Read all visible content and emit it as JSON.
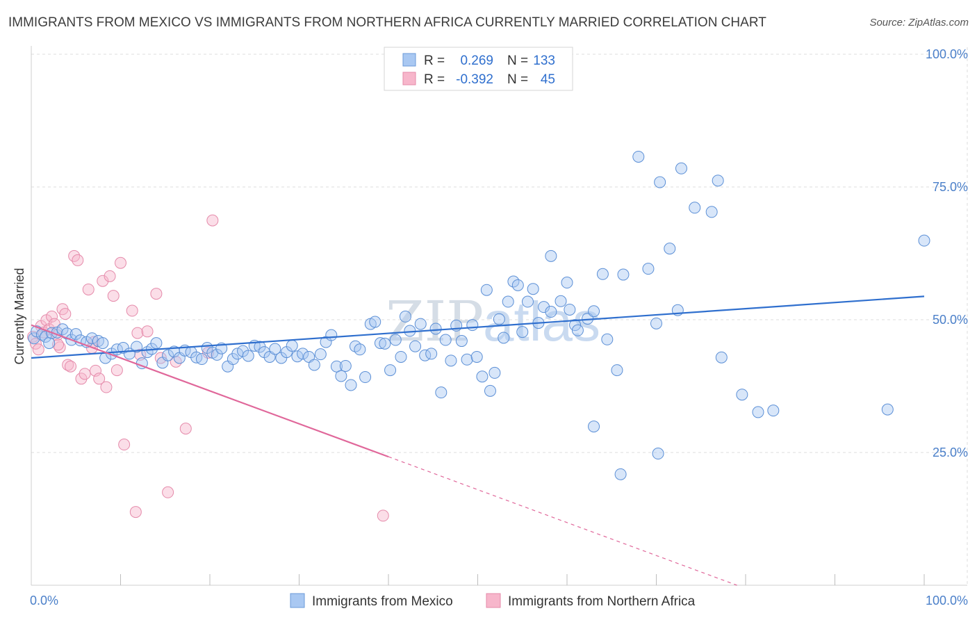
{
  "title": "IMMIGRANTS FROM MEXICO VS IMMIGRANTS FROM NORTHERN AFRICA CURRENTLY MARRIED CORRELATION CHART",
  "source": "Source: ZipAtlas.com",
  "watermark": {
    "part1": "ZIP",
    "part2": "atlas"
  },
  "colors": {
    "blue": "#2f6fce",
    "blue_fill": "#a9c8f2",
    "pink": "#e0679a",
    "pink_fill": "#f7b6cb",
    "tick_text": "#4a7fc9"
  },
  "legend_top": {
    "rows": [
      {
        "r_label": "R =",
        "r_value": "0.269",
        "n_label": "N =",
        "n_value": "133"
      },
      {
        "r_label": "R =",
        "r_value": "-0.392",
        "n_label": "N =",
        "n_value": "45"
      }
    ]
  },
  "chart_data": {
    "type": "scatter",
    "title": "IMMIGRANTS FROM MEXICO VS IMMIGRANTS FROM NORTHERN AFRICA CURRENTLY MARRIED CORRELATION CHART",
    "xlabel": "",
    "ylabel": "Currently Married",
    "xlim": [
      0,
      100
    ],
    "ylim": [
      0,
      105
    ],
    "x_tick_labels": [
      "0.0%",
      "100.0%"
    ],
    "y_tick_labels": [
      "25.0%",
      "50.0%",
      "75.0%",
      "100.0%"
    ],
    "y_ticks": [
      25,
      50,
      75,
      100
    ],
    "grid": true,
    "legend_position": "bottom",
    "series": [
      {
        "name": "Immigrants from Mexico",
        "trend": {
          "x": [
            0,
            100
          ],
          "y": [
            42.8,
            54.4
          ],
          "solid_until": 100
        },
        "points": [
          [
            0.3,
            46.5
          ],
          [
            0.6,
            47.8
          ],
          [
            1.2,
            47.2
          ],
          [
            1.6,
            46.8
          ],
          [
            2.0,
            45.6
          ],
          [
            2.3,
            47.5
          ],
          [
            2.9,
            47.6
          ],
          [
            3.5,
            48.2
          ],
          [
            4.0,
            47.4
          ],
          [
            4.5,
            46.2
          ],
          [
            5.0,
            47.3
          ],
          [
            5.5,
            46.1
          ],
          [
            6.2,
            45.8
          ],
          [
            6.8,
            46.5
          ],
          [
            7.5,
            46.0
          ],
          [
            8.0,
            45.6
          ],
          [
            8.3,
            42.8
          ],
          [
            9.0,
            43.6
          ],
          [
            9.6,
            44.4
          ],
          [
            10.3,
            44.7
          ],
          [
            11.0,
            43.6
          ],
          [
            11.8,
            44.9
          ],
          [
            12.4,
            41.8
          ],
          [
            13.0,
            43.9
          ],
          [
            13.5,
            44.5
          ],
          [
            14.0,
            45.6
          ],
          [
            14.7,
            41.9
          ],
          [
            15.3,
            43.3
          ],
          [
            16.0,
            44.0
          ],
          [
            16.6,
            42.8
          ],
          [
            17.2,
            44.2
          ],
          [
            17.9,
            43.9
          ],
          [
            18.5,
            42.9
          ],
          [
            19.1,
            42.6
          ],
          [
            19.7,
            44.7
          ],
          [
            20.3,
            43.8
          ],
          [
            20.8,
            43.4
          ],
          [
            21.3,
            44.6
          ],
          [
            22.0,
            41.2
          ],
          [
            22.6,
            42.6
          ],
          [
            23.1,
            43.6
          ],
          [
            23.7,
            44.1
          ],
          [
            24.3,
            43.2
          ],
          [
            25.0,
            45.1
          ],
          [
            25.6,
            44.9
          ],
          [
            26.1,
            43.9
          ],
          [
            26.7,
            43.0
          ],
          [
            27.3,
            44.5
          ],
          [
            28.0,
            42.8
          ],
          [
            28.6,
            43.9
          ],
          [
            29.2,
            45.1
          ],
          [
            29.8,
            43.1
          ],
          [
            30.4,
            43.6
          ],
          [
            31.1,
            43.0
          ],
          [
            31.7,
            41.5
          ],
          [
            32.4,
            43.5
          ],
          [
            33.0,
            45.8
          ],
          [
            33.6,
            47.1
          ],
          [
            34.2,
            41.2
          ],
          [
            34.7,
            39.4
          ],
          [
            35.2,
            41.3
          ],
          [
            35.8,
            37.7
          ],
          [
            36.3,
            45.0
          ],
          [
            36.8,
            44.4
          ],
          [
            37.4,
            39.2
          ],
          [
            38.0,
            49.2
          ],
          [
            38.5,
            49.6
          ],
          [
            39.1,
            45.6
          ],
          [
            39.6,
            45.5
          ],
          [
            40.2,
            40.5
          ],
          [
            40.8,
            46.2
          ],
          [
            41.4,
            43.0
          ],
          [
            41.9,
            50.6
          ],
          [
            42.4,
            47.9
          ],
          [
            43.0,
            45.0
          ],
          [
            43.6,
            49.2
          ],
          [
            44.1,
            43.3
          ],
          [
            44.8,
            43.6
          ],
          [
            45.3,
            48.3
          ],
          [
            45.9,
            36.3
          ],
          [
            46.4,
            46.2
          ],
          [
            47.0,
            42.3
          ],
          [
            47.6,
            48.9
          ],
          [
            48.2,
            46.0
          ],
          [
            48.8,
            42.5
          ],
          [
            49.4,
            49.0
          ],
          [
            49.9,
            43.0
          ],
          [
            50.5,
            39.3
          ],
          [
            51.0,
            55.6
          ],
          [
            51.4,
            36.6
          ],
          [
            51.9,
            40.0
          ],
          [
            52.4,
            50.1
          ],
          [
            52.9,
            46.6
          ],
          [
            53.4,
            53.4
          ],
          [
            54.0,
            57.2
          ],
          [
            54.5,
            56.5
          ],
          [
            55.0,
            47.7
          ],
          [
            55.6,
            53.4
          ],
          [
            56.2,
            55.8
          ],
          [
            56.8,
            49.4
          ],
          [
            57.4,
            52.4
          ],
          [
            58.2,
            51.5
          ],
          [
            59.3,
            53.5
          ],
          [
            60.3,
            51.9
          ],
          [
            60.9,
            49.0
          ],
          [
            61.2,
            48.0
          ],
          [
            62.3,
            50.2
          ],
          [
            63.0,
            51.6
          ],
          [
            64.0,
            58.6
          ],
          [
            64.5,
            46.3
          ],
          [
            65.6,
            40.5
          ],
          [
            66.3,
            58.5
          ],
          [
            68.0,
            80.7
          ],
          [
            69.1,
            59.6
          ],
          [
            70.0,
            49.3
          ],
          [
            70.4,
            75.9
          ],
          [
            71.5,
            63.4
          ],
          [
            72.4,
            51.8
          ],
          [
            72.8,
            78.5
          ],
          [
            74.3,
            71.1
          ],
          [
            76.2,
            70.3
          ],
          [
            76.9,
            76.2
          ],
          [
            77.3,
            42.9
          ],
          [
            79.6,
            35.9
          ],
          [
            81.4,
            32.6
          ],
          [
            83.1,
            32.9
          ],
          [
            95.9,
            33.1
          ],
          [
            100.0,
            64.9
          ],
          [
            63.0,
            29.9
          ],
          [
            66.0,
            20.9
          ],
          [
            70.2,
            24.8
          ],
          [
            58.2,
            62.0
          ],
          [
            60.0,
            57.0
          ]
        ]
      },
      {
        "name": "Immigrants from Northern Africa",
        "trend": {
          "x": [
            0,
            100
          ],
          "y": [
            49.0,
            -13.0
          ],
          "solid_until": 40
        },
        "points": [
          [
            0.2,
            46.8
          ],
          [
            0.5,
            45.5
          ],
          [
            0.8,
            44.4
          ],
          [
            1.1,
            48.8
          ],
          [
            1.4,
            47.6
          ],
          [
            1.7,
            49.9
          ],
          [
            2.0,
            48.2
          ],
          [
            2.3,
            50.6
          ],
          [
            2.6,
            49.2
          ],
          [
            2.9,
            47.1
          ],
          [
            3.2,
            44.8
          ],
          [
            3.5,
            52.0
          ],
          [
            3.8,
            51.1
          ],
          [
            4.1,
            41.5
          ],
          [
            4.4,
            41.2
          ],
          [
            4.8,
            62.0
          ],
          [
            5.2,
            61.2
          ],
          [
            5.6,
            38.9
          ],
          [
            6.0,
            39.8
          ],
          [
            6.4,
            55.7
          ],
          [
            6.8,
            44.7
          ],
          [
            7.2,
            40.4
          ],
          [
            7.6,
            38.9
          ],
          [
            8.0,
            57.3
          ],
          [
            8.4,
            37.3
          ],
          [
            8.8,
            58.2
          ],
          [
            9.2,
            54.5
          ],
          [
            9.6,
            40.5
          ],
          [
            10.0,
            60.7
          ],
          [
            10.4,
            26.5
          ],
          [
            11.3,
            51.7
          ],
          [
            11.7,
            13.8
          ],
          [
            11.9,
            47.5
          ],
          [
            12.2,
            43.4
          ],
          [
            13.0,
            47.8
          ],
          [
            14.0,
            54.9
          ],
          [
            14.5,
            42.8
          ],
          [
            15.3,
            17.5
          ],
          [
            16.2,
            42.1
          ],
          [
            17.3,
            29.5
          ],
          [
            19.8,
            43.8
          ],
          [
            20.3,
            68.7
          ],
          [
            39.4,
            13.1
          ],
          [
            7.0,
            45.8
          ],
          [
            3.0,
            45.3
          ]
        ]
      }
    ]
  }
}
